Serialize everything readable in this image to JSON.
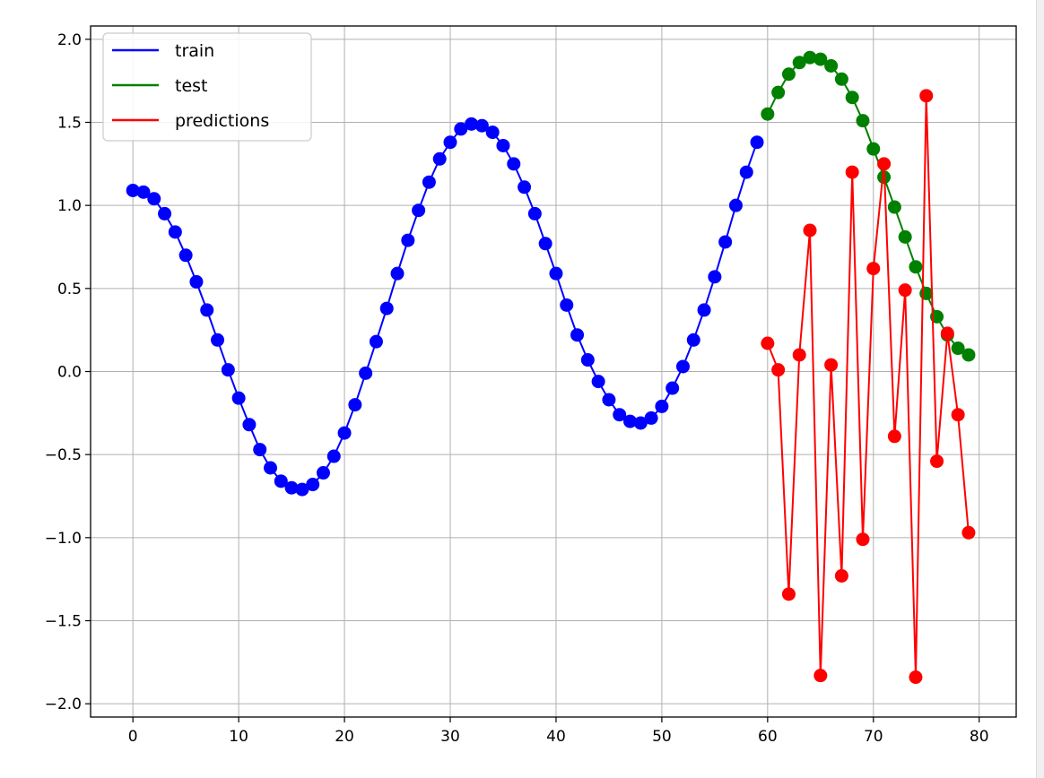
{
  "chart_data": {
    "type": "line",
    "title": "",
    "xlabel": "",
    "ylabel": "",
    "xlim": [
      -4,
      83.5
    ],
    "ylim": [
      -2.08,
      2.08
    ],
    "grid": true,
    "legend_position": "top-left",
    "x_ticks": [
      0,
      10,
      20,
      30,
      40,
      50,
      60,
      70,
      80
    ],
    "x_tick_labels": [
      "0",
      "10",
      "20",
      "30",
      "40",
      "50",
      "60",
      "70",
      "80"
    ],
    "y_ticks": [
      2.0,
      1.5,
      1.0,
      0.5,
      0.0,
      -0.5,
      -1.0,
      -1.5,
      -2.0
    ],
    "y_tick_labels": [
      "2.0",
      "1.5",
      "1.0",
      "0.5",
      "0.0",
      "−0.5",
      "−1.0",
      "−1.5",
      "−2.0"
    ],
    "series": [
      {
        "name": "train",
        "color": "#0000ff",
        "x": [
          0,
          1,
          2,
          3,
          4,
          5,
          6,
          7,
          8,
          9,
          10,
          11,
          12,
          13,
          14,
          15,
          16,
          17,
          18,
          19,
          20,
          21,
          22,
          23,
          24,
          25,
          26,
          27,
          28,
          29,
          30,
          31,
          32,
          33,
          34,
          35,
          36,
          37,
          38,
          39,
          40,
          41,
          42,
          43,
          44,
          45,
          46,
          47,
          48,
          49,
          50,
          51,
          52,
          53,
          54,
          55,
          56,
          57,
          58,
          59
        ],
        "y": [
          1.09,
          1.08,
          1.04,
          0.95,
          0.84,
          0.7,
          0.54,
          0.37,
          0.19,
          0.01,
          -0.16,
          -0.32,
          -0.47,
          -0.58,
          -0.66,
          -0.7,
          -0.71,
          -0.68,
          -0.61,
          -0.51,
          -0.37,
          -0.2,
          -0.01,
          0.18,
          0.38,
          0.59,
          0.79,
          0.97,
          1.14,
          1.28,
          1.38,
          1.46,
          1.49,
          1.48,
          1.44,
          1.36,
          1.25,
          1.11,
          0.95,
          0.77,
          0.59,
          0.4,
          0.22,
          0.07,
          -0.06,
          -0.17,
          -0.26,
          -0.3,
          -0.31,
          -0.28,
          -0.21,
          -0.1,
          0.03,
          0.19,
          0.37,
          0.57,
          0.78,
          1.0,
          1.2,
          1.38
        ]
      },
      {
        "name": "test",
        "color": "#008000",
        "x": [
          60,
          61,
          62,
          63,
          64,
          65,
          66,
          67,
          68,
          69,
          70,
          71,
          72,
          73,
          74,
          75,
          76,
          77,
          78,
          79
        ],
        "y": [
          1.55,
          1.68,
          1.79,
          1.86,
          1.89,
          1.88,
          1.84,
          1.76,
          1.65,
          1.51,
          1.34,
          1.17,
          0.99,
          0.81,
          0.63,
          0.47,
          0.33,
          0.22,
          0.14,
          0.1
        ]
      },
      {
        "name": "predictions",
        "color": "#ff0000",
        "x": [
          60,
          61,
          62,
          63,
          64,
          65,
          66,
          67,
          68,
          69,
          70,
          71,
          72,
          73,
          74,
          75,
          76,
          77,
          78,
          79
        ],
        "y": [
          0.17,
          0.01,
          -1.34,
          0.1,
          0.85,
          -1.83,
          0.04,
          -1.23,
          1.2,
          -1.01,
          0.62,
          1.25,
          -0.39,
          0.49,
          -1.84,
          1.66,
          -0.54,
          0.23,
          -0.26,
          -0.97
        ]
      }
    ]
  }
}
